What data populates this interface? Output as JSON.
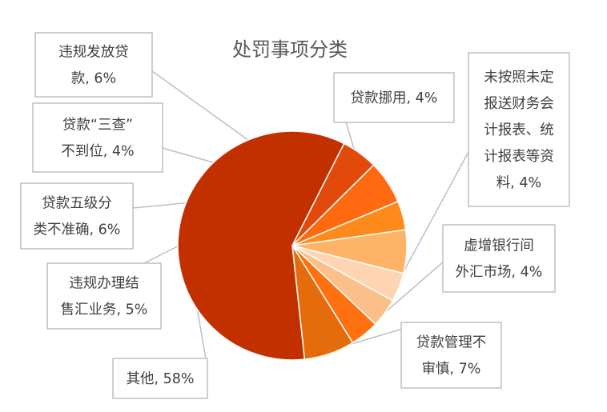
{
  "chart_data": {
    "type": "pie",
    "title": "处罚事项分类",
    "legend": "none",
    "slices": [
      {
        "label_lines": [
          "违规发放贷",
          "款, 6%"
        ],
        "value": 6,
        "color": "#ffb366"
      },
      {
        "label_lines": [
          "贷款挪用, 4%"
        ],
        "value": 4,
        "color": "#ffd4b3"
      },
      {
        "label_lines": [
          "未按照未定",
          "报送财务会",
          "计报表、统",
          "计报表等资",
          "料, 4%"
        ],
        "value": 4,
        "color": "#fbbf8a"
      },
      {
        "label_lines": [
          "虚增银行间",
          "外汇市场, 4%"
        ],
        "value": 4,
        "color": "#ff7010"
      },
      {
        "label_lines": [
          "贷款管理不",
          "审慎, 7%"
        ],
        "value": 7,
        "color": "#e46c0a"
      },
      {
        "label_lines": [
          "其他, 58%"
        ],
        "value": 58,
        "color": "#c23000"
      },
      {
        "label_lines": [
          "违规办理结",
          "售汇业务, 5%"
        ],
        "value": 5,
        "color": "#e24a0c"
      },
      {
        "label_lines": [
          "贷款五级分",
          "类不准确, 6%"
        ],
        "value": 6,
        "color": "#ff6a10"
      },
      {
        "label_lines": [
          "贷款“三查”",
          "不到位, 4%"
        ],
        "value": 4,
        "color": "#ff8a1c"
      }
    ]
  }
}
